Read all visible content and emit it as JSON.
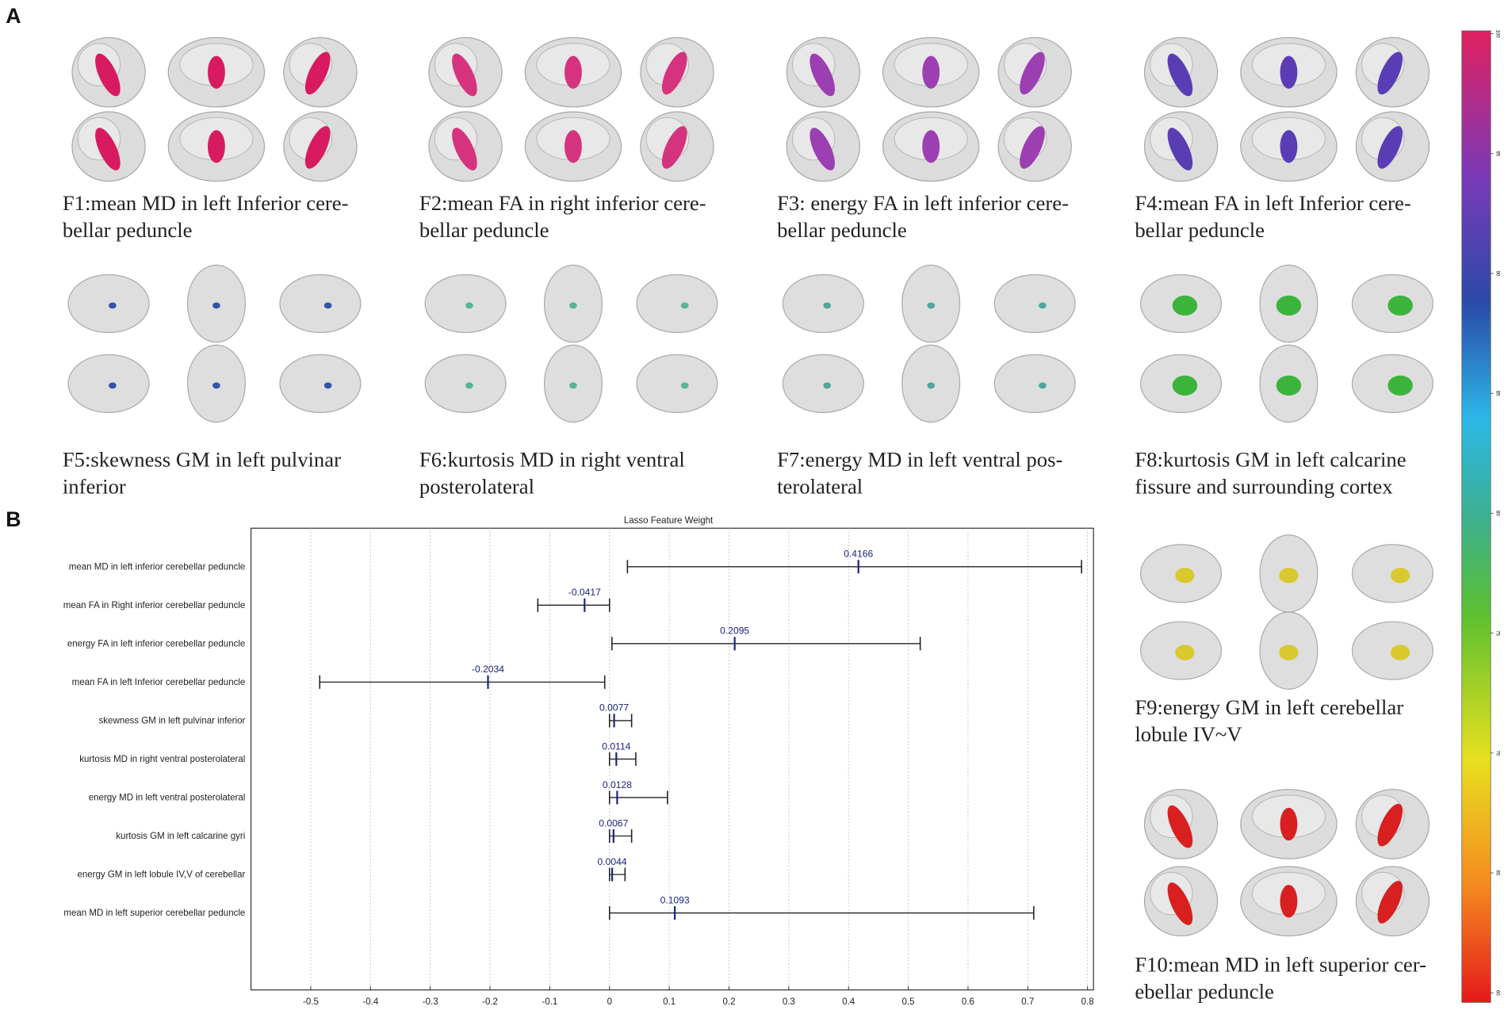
{
  "panel_labels": [
    "A",
    "B"
  ],
  "captions": [
    {
      "lines": [
        "F1:mean MD in left Inferior cere-",
        "bellar peduncle"
      ]
    },
    {
      "lines": [
        "F2:mean FA in right inferior cere-",
        "bellar peduncle"
      ]
    },
    {
      "lines": [
        "F3: energy FA in left inferior cere-",
        "bellar peduncle"
      ]
    },
    {
      "lines": [
        "F4:mean FA in left Inferior cere-",
        "bellar peduncle"
      ]
    },
    {
      "lines": [
        "F5:skewness GM in left pulvinar",
        "inferior"
      ]
    },
    {
      "lines": [
        "F6:kurtosis MD in right ventral",
        "posterolateral"
      ]
    },
    {
      "lines": [
        "F7:energy MD in left ventral pos-",
        "terolateral"
      ]
    },
    {
      "lines": [
        "F8:kurtosis GM in left calcarine",
        "fissure and surrounding cortex"
      ]
    },
    {
      "lines": [
        "F9:energy GM in left cerebellar",
        "lobule IV~V"
      ]
    },
    {
      "lines": [
        "F10:mean MD in left superior cer-",
        "ebellar peduncle"
      ]
    }
  ],
  "colorbar": {
    "lim": [
      60,
      100
    ],
    "ticks": [
      60,
      65,
      70,
      75,
      80,
      85,
      90,
      95,
      100
    ]
  },
  "chart_data": {
    "type": "errorbar",
    "title": "Lasso Feature Weight",
    "categories": [
      "mean MD in left inferior cerebellar peduncle",
      "mean FA in Right inferior cerebellar peduncle",
      "energy FA in left inferior cerebellar peduncle",
      "mean FA in left Inferior cerebellar peduncle",
      "skewness GM in left pulvinar inferior",
      "kurtosis MD in right ventral posterolateral",
      "energy MD in left ventral posterolateral",
      "kurtosis GM in left calcarine gyri",
      "energy GM in left lobule IV,V of cerebellar",
      "mean MD in left superior cerebellar peduncle"
    ],
    "values": [
      0.4166,
      -0.0417,
      0.2095,
      -0.2034,
      0.0077,
      0.0114,
      0.0128,
      0.0067,
      0.0044,
      0.1093
    ],
    "lower": [
      0.03,
      -0.12,
      0.004,
      -0.485,
      0,
      0,
      0,
      0,
      0,
      0
    ],
    "upper": [
      0.79,
      0,
      0.52,
      -0.008,
      0.037,
      0.044,
      0.097,
      0.037,
      0.026,
      0.71
    ],
    "color": "#1a237e",
    "xlim": [
      -0.6,
      0.81
    ],
    "xticks": [
      -0.5,
      -0.4,
      -0.3,
      -0.2,
      -0.1,
      0,
      0.1,
      0.2,
      0.3,
      0.4,
      0.5,
      0.6,
      0.7,
      0.8
    ],
    "grid": true
  }
}
